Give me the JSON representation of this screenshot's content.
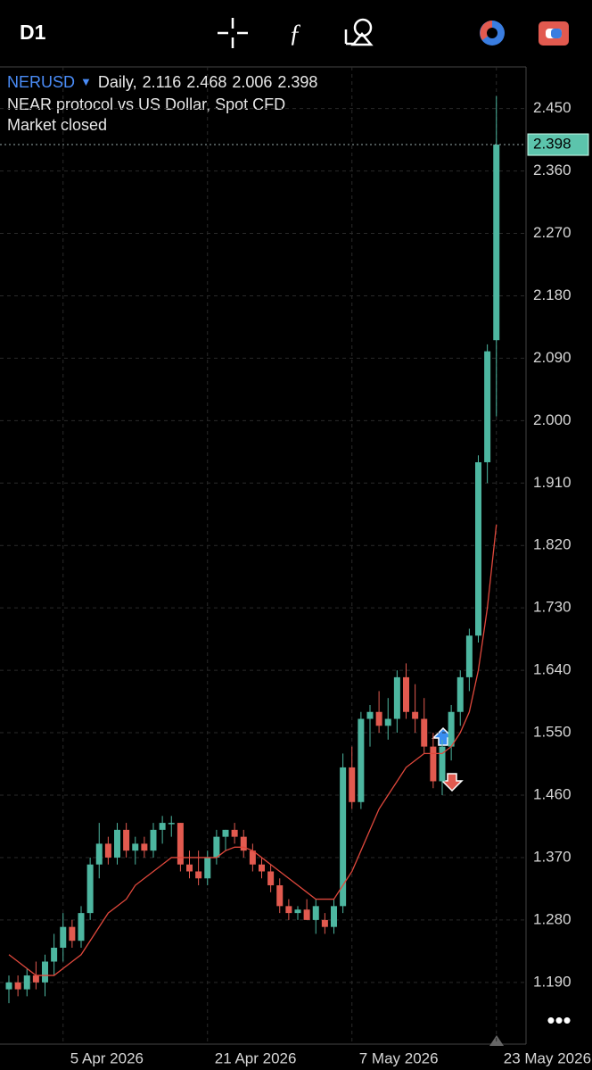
{
  "chart_data": {
    "type": "candlestick",
    "toolbar_timeframe": "D1",
    "symbol": "NERUSD",
    "timeframe_label": "Daily,",
    "description": "NEAR protocol vs US Dollar, Spot CFD",
    "status": "Market closed",
    "categories": [
      null,
      null,
      null,
      null,
      null,
      null,
      "5 Apr 2026",
      null,
      null,
      null,
      null,
      null,
      null,
      null,
      null,
      null,
      null,
      null,
      null,
      null,
      null,
      null,
      "21 Apr 2026",
      null,
      null,
      null,
      null,
      null,
      null,
      null,
      null,
      null,
      null,
      null,
      null,
      null,
      null,
      null,
      "7 May 2026",
      null,
      null,
      null,
      null,
      null,
      null,
      null,
      null,
      null,
      null,
      null,
      null,
      null,
      null,
      null,
      "23 May 2026"
    ],
    "open": [
      1.18,
      1.19,
      1.18,
      1.2,
      1.19,
      1.22,
      1.24,
      1.27,
      1.25,
      1.29,
      1.36,
      1.39,
      1.37,
      1.41,
      1.38,
      1.39,
      1.38,
      1.41,
      1.42,
      1.42,
      1.36,
      1.35,
      1.34,
      1.37,
      1.4,
      1.41,
      1.4,
      1.38,
      1.36,
      1.35,
      1.33,
      1.3,
      1.29,
      1.295,
      1.28,
      1.28,
      1.27,
      1.3,
      1.5,
      1.45,
      1.57,
      1.58,
      1.56,
      1.57,
      1.63,
      1.58,
      1.57,
      1.53,
      1.48,
      1.53,
      1.58,
      1.63,
      1.69,
      1.94,
      2.116
    ],
    "high": [
      1.2,
      1.2,
      1.21,
      1.22,
      1.23,
      1.26,
      1.29,
      1.28,
      1.3,
      1.37,
      1.42,
      1.4,
      1.42,
      1.42,
      1.4,
      1.4,
      1.42,
      1.43,
      1.43,
      1.42,
      1.38,
      1.38,
      1.38,
      1.41,
      1.41,
      1.42,
      1.41,
      1.39,
      1.37,
      1.36,
      1.34,
      1.31,
      1.3,
      1.31,
      1.31,
      1.29,
      1.31,
      1.52,
      1.53,
      1.58,
      1.59,
      1.61,
      1.6,
      1.64,
      1.65,
      1.62,
      1.6,
      1.55,
      1.54,
      1.59,
      1.64,
      1.7,
      1.95,
      2.11,
      2.468
    ],
    "low": [
      1.16,
      1.17,
      1.17,
      1.18,
      1.17,
      1.2,
      1.22,
      1.24,
      1.24,
      1.28,
      1.34,
      1.36,
      1.36,
      1.37,
      1.36,
      1.37,
      1.37,
      1.39,
      1.4,
      1.35,
      1.34,
      1.33,
      1.33,
      1.36,
      1.38,
      1.39,
      1.37,
      1.35,
      1.34,
      1.32,
      1.29,
      1.28,
      1.28,
      1.28,
      1.26,
      1.26,
      1.26,
      1.29,
      1.44,
      1.44,
      1.53,
      1.55,
      1.54,
      1.55,
      1.57,
      1.55,
      1.52,
      1.47,
      1.46,
      1.51,
      1.56,
      1.61,
      1.68,
      1.91,
      2.006
    ],
    "close": [
      1.19,
      1.18,
      1.2,
      1.19,
      1.22,
      1.24,
      1.27,
      1.25,
      1.29,
      1.36,
      1.39,
      1.37,
      1.41,
      1.38,
      1.39,
      1.38,
      1.41,
      1.42,
      1.42,
      1.36,
      1.35,
      1.34,
      1.37,
      1.4,
      1.41,
      1.4,
      1.38,
      1.36,
      1.35,
      1.33,
      1.3,
      1.29,
      1.295,
      1.28,
      1.3,
      1.27,
      1.3,
      1.5,
      1.45,
      1.57,
      1.58,
      1.56,
      1.57,
      1.63,
      1.58,
      1.57,
      1.53,
      1.48,
      1.53,
      1.58,
      1.63,
      1.69,
      1.94,
      2.1,
      2.398
    ],
    "up_color": "#4db6a0",
    "down_color": "#e25a4f",
    "moving_average": {
      "color": "#e0483c",
      "values": [
        1.23,
        1.22,
        1.21,
        1.2,
        1.2,
        1.2,
        1.21,
        1.22,
        1.23,
        1.25,
        1.27,
        1.29,
        1.3,
        1.31,
        1.33,
        1.34,
        1.35,
        1.36,
        1.37,
        1.37,
        1.37,
        1.37,
        1.37,
        1.37,
        1.38,
        1.385,
        1.385,
        1.38,
        1.37,
        1.36,
        1.35,
        1.34,
        1.33,
        1.32,
        1.31,
        1.31,
        1.31,
        1.33,
        1.35,
        1.38,
        1.41,
        1.44,
        1.46,
        1.48,
        1.5,
        1.51,
        1.52,
        1.52,
        1.52,
        1.53,
        1.55,
        1.58,
        1.64,
        1.73,
        1.85
      ]
    },
    "ylim": [
      1.101,
      2.51
    ],
    "yticks": [
      {
        "value": 1.19,
        "label": "1.190"
      },
      {
        "value": 1.28,
        "label": "1.280"
      },
      {
        "value": 1.37,
        "label": "1.370"
      },
      {
        "value": 1.46,
        "label": "1.460"
      },
      {
        "value": 1.55,
        "label": "1.550"
      },
      {
        "value": 1.64,
        "label": "1.640"
      },
      {
        "value": 1.73,
        "label": "1.730"
      },
      {
        "value": 1.82,
        "label": "1.820"
      },
      {
        "value": 1.91,
        "label": "1.910"
      },
      {
        "value": 2.0,
        "label": "2.000"
      },
      {
        "value": 2.09,
        "label": "2.090"
      },
      {
        "value": 2.18,
        "label": "2.180"
      },
      {
        "value": 2.27,
        "label": "2.270"
      },
      {
        "value": 2.36,
        "label": "2.360"
      },
      {
        "value": 2.45,
        "label": "2.450"
      }
    ],
    "grid": true
  }
}
